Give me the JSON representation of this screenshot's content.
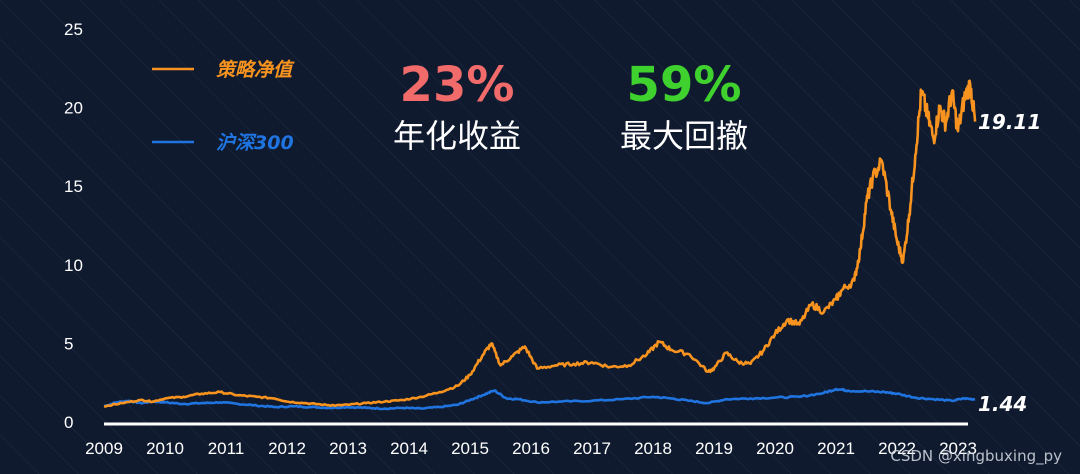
{
  "chart_data": {
    "type": "line",
    "title": "",
    "xlabel": "",
    "ylabel": "",
    "xlim": [
      2009,
      2023.35
    ],
    "ylim": [
      0,
      25
    ],
    "y_ticks": [
      "0",
      "5",
      "10",
      "15",
      "20",
      "25"
    ],
    "x_ticks": [
      "2009",
      "2010",
      "2011",
      "2012",
      "2013",
      "2014",
      "2015",
      "2016",
      "2017",
      "2018",
      "2019",
      "2020",
      "2021",
      "2022",
      "2023"
    ],
    "grid": "diagonal-hatch",
    "legend_position": "top-left",
    "series": [
      {
        "name": "策略净值",
        "color": "#f7931e",
        "end_label": "19.11",
        "x": [
          2009.0,
          2009.3,
          2009.6,
          2009.8,
          2010.0,
          2010.3,
          2010.6,
          2010.9,
          2011.2,
          2011.5,
          2011.8,
          2012.0,
          2012.3,
          2012.6,
          2012.8,
          2013.0,
          2013.3,
          2013.6,
          2013.9,
          2014.2,
          2014.5,
          2014.8,
          2015.0,
          2015.2,
          2015.35,
          2015.5,
          2015.7,
          2015.9,
          2016.1,
          2016.4,
          2016.7,
          2017.0,
          2017.3,
          2017.6,
          2017.9,
          2018.1,
          2018.3,
          2018.6,
          2018.9,
          2019.0,
          2019.2,
          2019.4,
          2019.6,
          2019.8,
          2020.0,
          2020.2,
          2020.4,
          2020.6,
          2020.8,
          2021.0,
          2021.1,
          2021.3,
          2021.4,
          2021.5,
          2021.6,
          2021.75,
          2021.9,
          2022.0,
          2022.1,
          2022.2,
          2022.3,
          2022.4,
          2022.5,
          2022.6,
          2022.7,
          2022.8,
          2022.9,
          2023.0,
          2023.1,
          2023.2,
          2023.28
        ],
        "values": [
          1.0,
          1.2,
          1.4,
          1.3,
          1.5,
          1.6,
          1.8,
          1.9,
          1.7,
          1.6,
          1.5,
          1.3,
          1.2,
          1.1,
          1.05,
          1.1,
          1.2,
          1.3,
          1.4,
          1.6,
          1.9,
          2.3,
          3.0,
          4.2,
          5.0,
          3.6,
          4.2,
          4.8,
          3.4,
          3.6,
          3.7,
          3.8,
          3.5,
          3.6,
          4.3,
          5.1,
          4.6,
          4.3,
          3.2,
          3.4,
          4.4,
          3.8,
          3.7,
          4.5,
          5.6,
          6.5,
          6.2,
          7.5,
          7.0,
          7.8,
          8.4,
          9.0,
          11.0,
          14.0,
          15.5,
          16.6,
          13.5,
          11.5,
          10.2,
          13.2,
          17.0,
          21.0,
          19.5,
          18.0,
          20.0,
          19.0,
          21.0,
          18.5,
          20.5,
          21.5,
          19.11
        ]
      },
      {
        "name": "沪深300",
        "color": "#1f74e0",
        "end_label": "1.44",
        "x": [
          2009.0,
          2009.2,
          2009.4,
          2009.6,
          2009.8,
          2010.0,
          2010.3,
          2010.6,
          2010.9,
          2011.2,
          2011.5,
          2011.8,
          2012.1,
          2012.4,
          2012.7,
          2013.0,
          2013.3,
          2013.6,
          2013.9,
          2014.2,
          2014.5,
          2014.8,
          2015.0,
          2015.2,
          2015.4,
          2015.6,
          2015.8,
          2016.1,
          2016.5,
          2017.0,
          2017.5,
          2018.0,
          2018.3,
          2018.6,
          2018.9,
          2019.2,
          2019.6,
          2020.0,
          2020.4,
          2020.8,
          2021.0,
          2021.2,
          2021.5,
          2021.8,
          2022.0,
          2022.3,
          2022.6,
          2022.9,
          2023.1,
          2023.28
        ],
        "values": [
          1.0,
          1.25,
          1.35,
          1.2,
          1.3,
          1.25,
          1.15,
          1.2,
          1.25,
          1.15,
          1.05,
          0.95,
          1.0,
          0.95,
          0.9,
          0.95,
          0.9,
          0.85,
          0.9,
          0.85,
          0.95,
          1.1,
          1.4,
          1.7,
          2.0,
          1.5,
          1.45,
          1.25,
          1.3,
          1.35,
          1.45,
          1.6,
          1.5,
          1.35,
          1.2,
          1.45,
          1.5,
          1.55,
          1.6,
          1.85,
          2.1,
          2.0,
          1.95,
          1.9,
          1.8,
          1.55,
          1.45,
          1.35,
          1.5,
          1.44
        ]
      }
    ],
    "annotations": [
      {
        "value": "23%",
        "label": "年化收益",
        "color": "#f26b6b"
      },
      {
        "value": "59%",
        "label": "最大回撤",
        "color": "#3fd22f"
      }
    ]
  },
  "watermark": "CSDN @xingbuxing_py"
}
